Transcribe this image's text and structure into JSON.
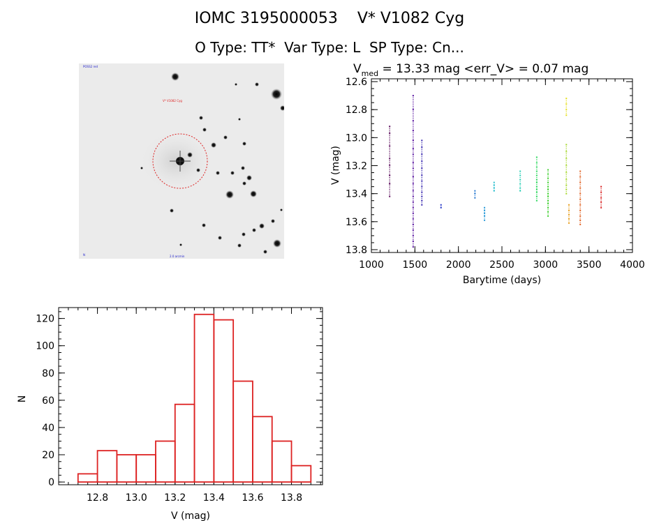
{
  "header": {
    "title_line1": "IOMC 3195000053    V* V1082 Cyg",
    "title_line2": "O Type: TT*  Var Type: L  SP Type: Cn..."
  },
  "finder": {
    "label_top_left": "POSS2 red",
    "label_target": "V* V1082 Cyg",
    "label_bottom_left": "N",
    "label_bottom_center": "2.0 arcmin",
    "colors": {
      "circle": "#dd2222",
      "label": "#2222cc"
    }
  },
  "chart_data": [
    {
      "type": "scatter",
      "title": "V_med = 13.33 mag <err_V> = 0.07 mag",
      "title_main": "V",
      "title_sub": "med",
      "title_rest": " = 13.33 mag <err_V> = 0.07 mag",
      "xlabel": "Barytime (days)",
      "ylabel": "V (mag)",
      "xlim": [
        1000,
        4000
      ],
      "ylim": [
        13.82,
        12.58
      ],
      "y_reversed": true,
      "xticks": [
        1000,
        1500,
        2000,
        2500,
        3000,
        3500,
        4000
      ],
      "xtick_labels": [
        "1000",
        "1500",
        "2000",
        "2500",
        "3000",
        "3500",
        "4000"
      ],
      "yticks": [
        12.6,
        12.8,
        13.0,
        13.2,
        13.4,
        13.6,
        13.8
      ],
      "ytick_labels": [
        "12.6",
        "12.8",
        "13.0",
        "13.2",
        "13.4",
        "13.6",
        "13.8"
      ],
      "grid": false,
      "series": [
        {
          "color": "#5a0a5a",
          "x": [
            1210,
            1210,
            1210,
            1210,
            1210,
            1210,
            1210,
            1210
          ],
          "y": [
            12.92,
            12.97,
            13.06,
            13.15,
            13.2,
            13.27,
            13.33,
            13.42
          ]
        },
        {
          "color": "#5a16a0",
          "x": [
            1480,
            1480,
            1480,
            1480,
            1480,
            1480,
            1480,
            1480,
            1480,
            1480,
            1480,
            1480,
            1480,
            1480,
            1480,
            1480,
            1480,
            1480,
            1480,
            1480,
            1480,
            1480
          ],
          "y": [
            12.7,
            12.8,
            12.88,
            12.95,
            13.02,
            13.08,
            13.12,
            13.18,
            13.22,
            13.28,
            13.33,
            13.38,
            13.42,
            13.46,
            13.5,
            13.54,
            13.58,
            13.62,
            13.66,
            13.7,
            13.74,
            13.78
          ]
        },
        {
          "color": "#3a2ab0",
          "x": [
            1580,
            1580,
            1580,
            1580,
            1580,
            1580,
            1580,
            1580,
            1580,
            1580,
            1580,
            1580
          ],
          "y": [
            13.02,
            13.07,
            13.12,
            13.17,
            13.22,
            13.27,
            13.31,
            13.35,
            13.39,
            13.42,
            13.45,
            13.48
          ]
        },
        {
          "color": "#2a3ac8",
          "x": [
            1800,
            1800
          ],
          "y": [
            13.48,
            13.5
          ]
        },
        {
          "color": "#2a7ad0",
          "x": [
            2190,
            2190,
            2190
          ],
          "y": [
            13.38,
            13.4,
            13.43
          ]
        },
        {
          "color": "#2a9ad8",
          "x": [
            2300,
            2300,
            2300,
            2300,
            2300
          ],
          "y": [
            13.5,
            13.52,
            13.54,
            13.56,
            13.59
          ]
        },
        {
          "color": "#30c0d0",
          "x": [
            2410,
            2410,
            2410,
            2410
          ],
          "y": [
            13.32,
            13.34,
            13.36,
            13.38
          ]
        },
        {
          "color": "#30d0b8",
          "x": [
            2710,
            2710,
            2710,
            2710,
            2710,
            2710
          ],
          "y": [
            13.24,
            13.27,
            13.3,
            13.33,
            13.36,
            13.38
          ]
        },
        {
          "color": "#30d860",
          "x": [
            2900,
            2900,
            2900,
            2900,
            2900,
            2900,
            2900,
            2900,
            2900,
            2900,
            2900,
            2900
          ],
          "y": [
            13.14,
            13.18,
            13.21,
            13.24,
            13.27,
            13.3,
            13.32,
            13.35,
            13.37,
            13.39,
            13.42,
            13.45
          ]
        },
        {
          "color": "#40d030",
          "x": [
            3030,
            3030,
            3030,
            3030,
            3030,
            3030,
            3030,
            3030,
            3030,
            3030,
            3030,
            3030,
            3030
          ],
          "y": [
            13.23,
            13.26,
            13.29,
            13.32,
            13.35,
            13.37,
            13.4,
            13.42,
            13.45,
            13.47,
            13.5,
            13.53,
            13.56
          ]
        },
        {
          "color": "#a8d830",
          "x": [
            3240,
            3240,
            3240,
            3240,
            3240,
            3240,
            3240,
            3240,
            3240
          ],
          "y": [
            13.05,
            13.1,
            13.15,
            13.2,
            13.25,
            13.3,
            13.34,
            13.37,
            13.4
          ]
        },
        {
          "color": "#e6e020",
          "x": [
            3240,
            3240,
            3240,
            3240
          ],
          "y": [
            12.72,
            12.76,
            12.8,
            12.84
          ]
        },
        {
          "color": "#e8a020",
          "x": [
            3270,
            3270,
            3270,
            3270,
            3270
          ],
          "y": [
            13.48,
            13.52,
            13.55,
            13.58,
            13.61
          ]
        },
        {
          "color": "#e06020",
          "x": [
            3400,
            3400,
            3400,
            3400,
            3400,
            3400,
            3400,
            3400,
            3400,
            3400,
            3400
          ],
          "y": [
            13.24,
            13.28,
            13.32,
            13.36,
            13.4,
            13.44,
            13.48,
            13.52,
            13.56,
            13.59,
            13.62
          ]
        },
        {
          "color": "#d82020",
          "x": [
            3640,
            3640,
            3640,
            3640,
            3640
          ],
          "y": [
            13.35,
            13.39,
            13.43,
            13.46,
            13.5
          ]
        }
      ]
    },
    {
      "type": "bar",
      "style": "histogram-outline",
      "xlabel": "V (mag)",
      "ylabel": "N",
      "xlim": [
        12.6,
        13.96
      ],
      "ylim": [
        -2,
        128
      ],
      "xticks": [
        12.8,
        13.0,
        13.2,
        13.4,
        13.6,
        13.8
      ],
      "xtick_labels": [
        "12.8",
        "13.0",
        "13.2",
        "13.4",
        "13.6",
        "13.8"
      ],
      "yticks": [
        0,
        20,
        40,
        60,
        80,
        100,
        120
      ],
      "ytick_labels": [
        "0",
        "20",
        "40",
        "60",
        "80",
        "100",
        "120"
      ],
      "bin_edges": [
        12.7,
        12.8,
        12.9,
        13.0,
        13.1,
        13.2,
        13.3,
        13.4,
        13.5,
        13.6,
        13.7,
        13.8,
        13.9
      ],
      "values": [
        6,
        23,
        20,
        20,
        30,
        57,
        123,
        119,
        74,
        48,
        30,
        12,
        1
      ],
      "color": "#dd2222"
    }
  ]
}
